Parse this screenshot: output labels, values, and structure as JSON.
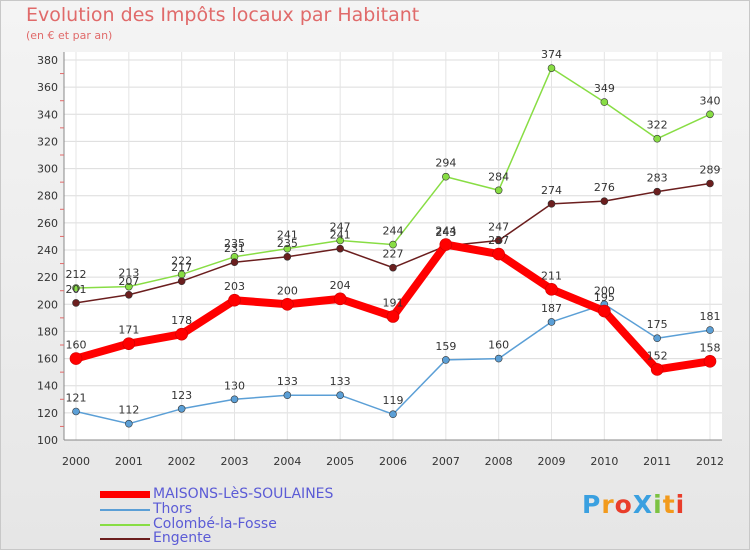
{
  "chart_data": {
    "type": "line",
    "title": "Evolution des Impôts locaux par Habitant",
    "subtitle": "(en € et par an)",
    "xlabel": "",
    "ylabel": "",
    "ylim": [
      100,
      380
    ],
    "yticks": [
      100,
      120,
      140,
      160,
      180,
      200,
      220,
      240,
      260,
      280,
      300,
      320,
      340,
      360,
      380
    ],
    "grid": true,
    "legend_position": "bottom-left",
    "categories": [
      "2000",
      "2001",
      "2002",
      "2003",
      "2004",
      "2005",
      "2006",
      "2007",
      "2008",
      "2009",
      "2010",
      "2011",
      "2012"
    ],
    "series": [
      {
        "name": "MAISONS-LèS-SOULAINES",
        "color": "#ff0000",
        "values": [
          160,
          171,
          178,
          203,
          200,
          204,
          191,
          244,
          237,
          211,
          195,
          152,
          158
        ]
      },
      {
        "name": "Thors",
        "color": "#5b9fd6",
        "values": [
          121,
          112,
          123,
          130,
          133,
          133,
          119,
          159,
          160,
          187,
          200,
          175,
          181
        ]
      },
      {
        "name": "Colombé-la-Fosse",
        "color": "#88dd44",
        "values": [
          212,
          213,
          222,
          235,
          241,
          247,
          244,
          294,
          284,
          374,
          349,
          322,
          340
        ]
      },
      {
        "name": "Engente",
        "color": "#6b1e1e",
        "values": [
          201,
          207,
          217,
          231,
          235,
          241,
          227,
          243,
          247,
          274,
          276,
          283,
          289
        ]
      }
    ]
  },
  "logo": {
    "text": "ProXiti",
    "letters": [
      "P",
      "r",
      "o",
      "X",
      "i",
      "t",
      "i"
    ],
    "colors": [
      "#3aa0e0",
      "#f29a1c",
      "#e93d2a",
      "#3aa0e0",
      "#7cc242",
      "#f29a1c",
      "#e93d2a"
    ]
  }
}
